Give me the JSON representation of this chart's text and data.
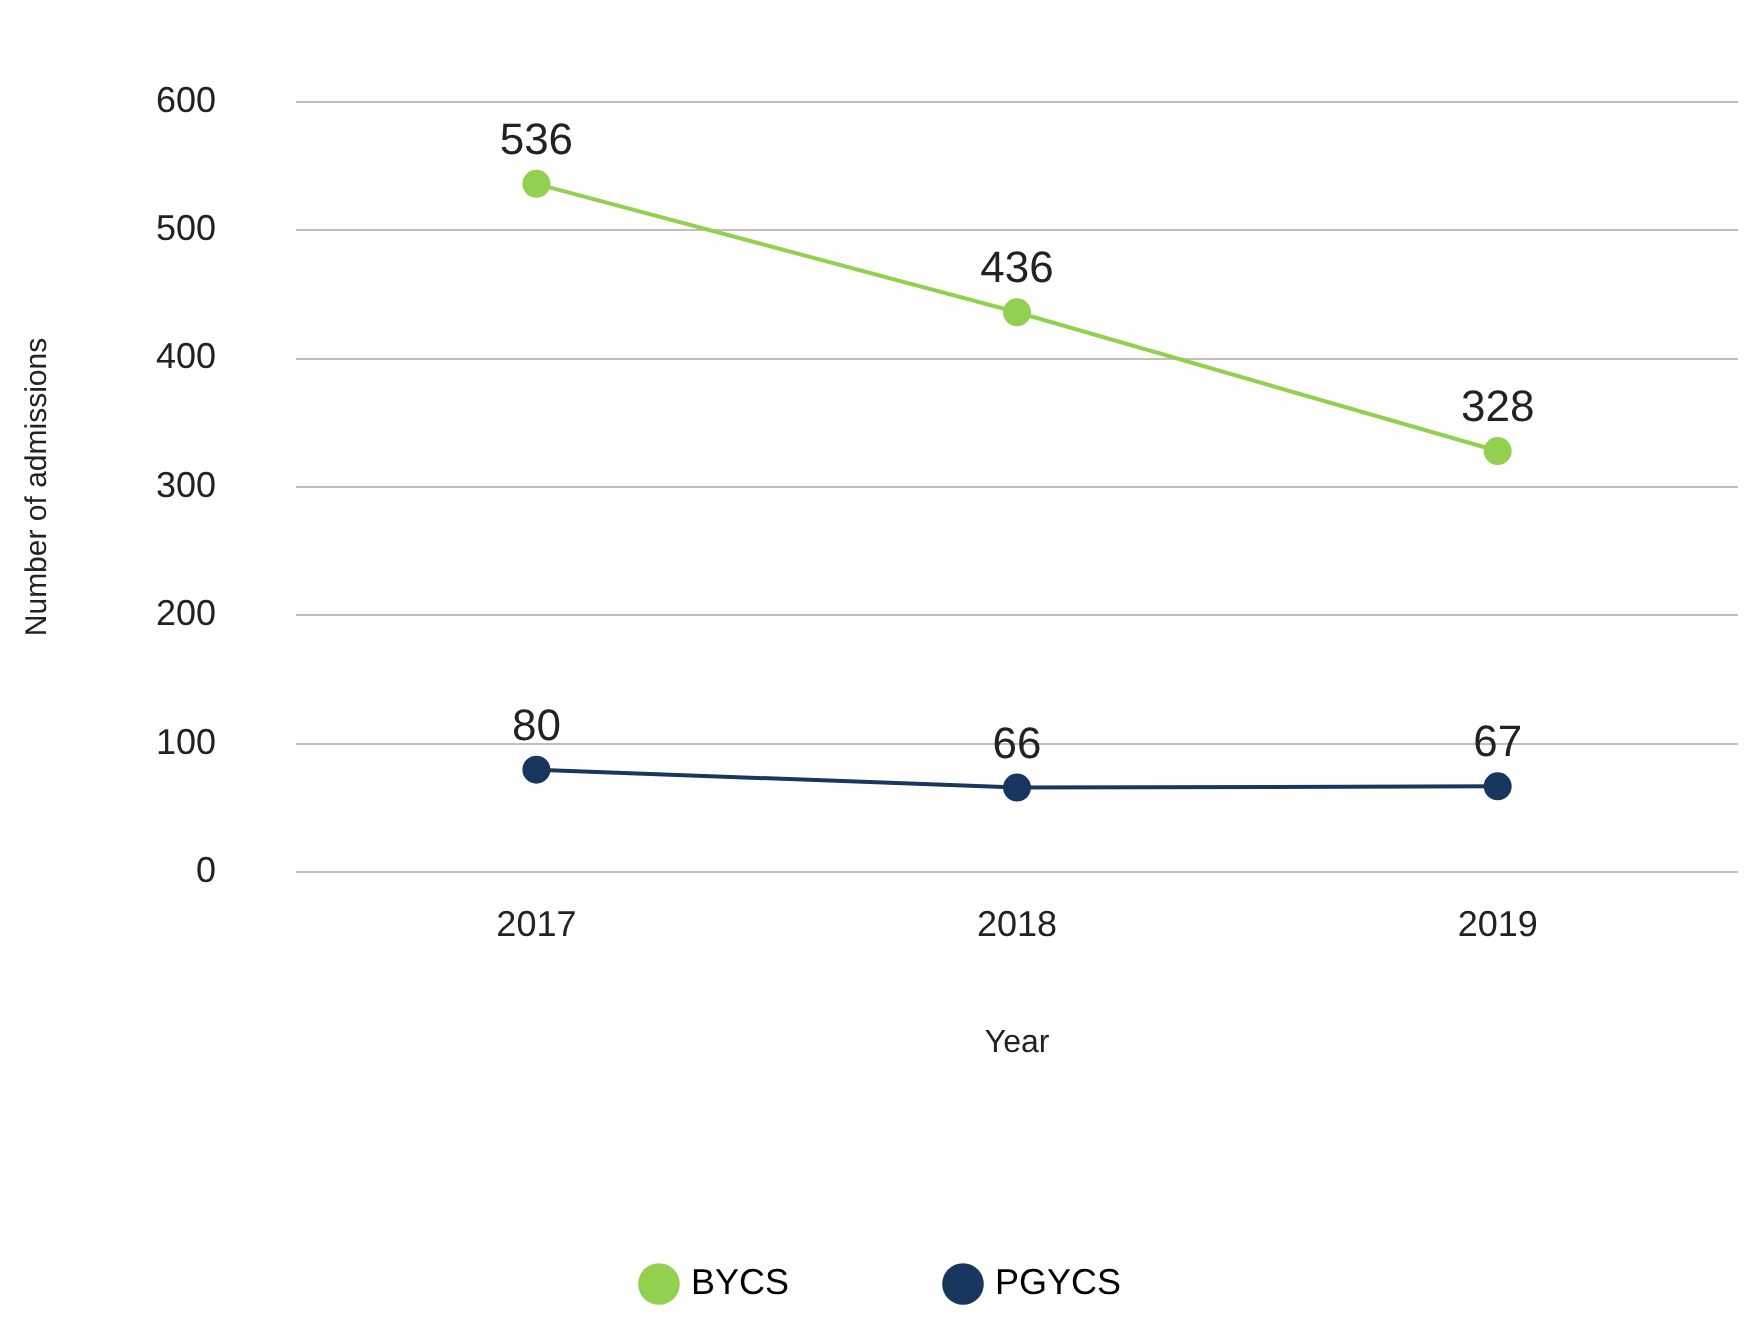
{
  "chart_data": {
    "type": "line",
    "xlabel": "Year",
    "ylabel": "Number of admissions",
    "categories": [
      "2017",
      "2018",
      "2019"
    ],
    "series": [
      {
        "name": "BYCS",
        "color": "#92d050",
        "values": [
          536,
          436,
          328
        ]
      },
      {
        "name": "PGYCS",
        "color": "#17375e",
        "values": [
          80,
          66,
          67
        ]
      }
    ],
    "ylim": [
      0,
      600
    ],
    "yticks": [
      0,
      100,
      200,
      300,
      400,
      500,
      600
    ],
    "grid": "y",
    "legend": "bottom",
    "marker": "circle",
    "line_style": "solid",
    "data_labels": true
  }
}
